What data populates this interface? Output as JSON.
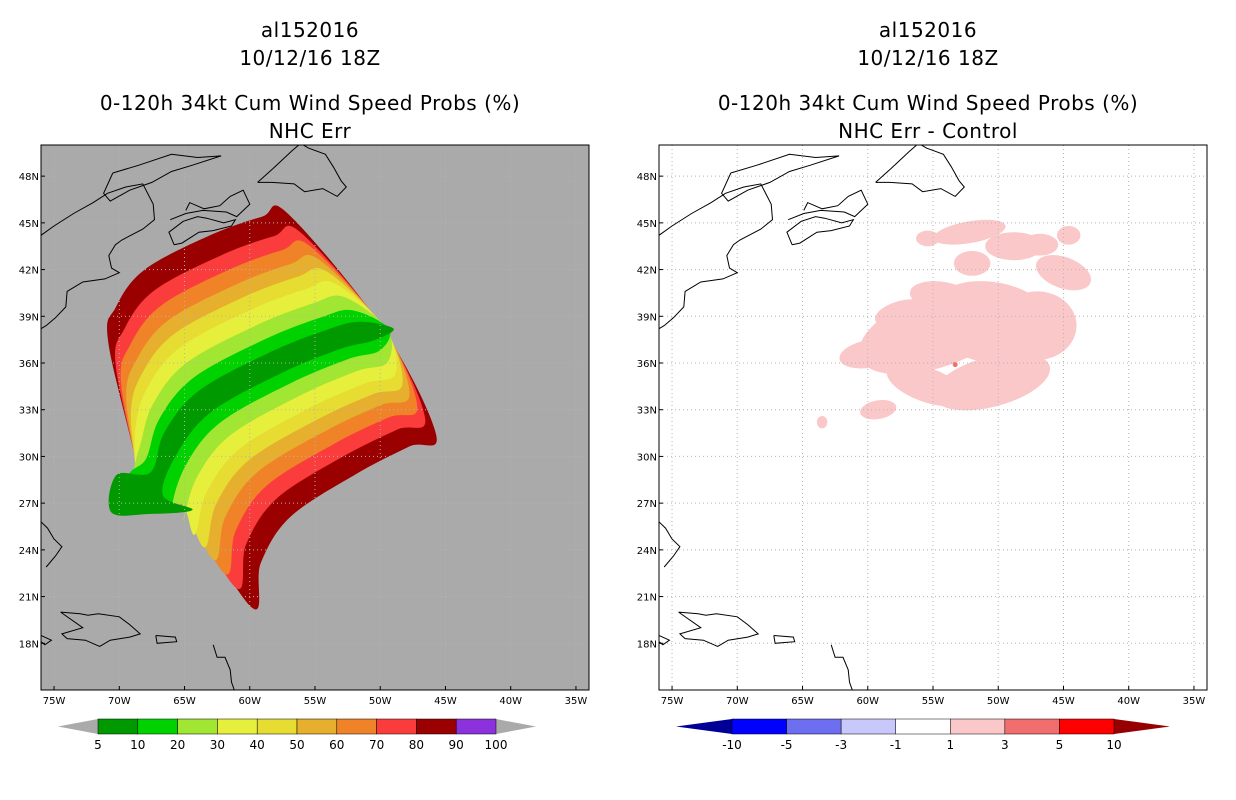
{
  "chart_data": [
    {
      "type": "heatmap",
      "storm_id": "al152016",
      "datetime": "10/12/16 18Z",
      "title": "0-120h 34kt Cum Wind Speed Probs (%)",
      "subtitle": "NHC Err",
      "lon_range": [
        -76,
        -34
      ],
      "lat_range": [
        15,
        50
      ],
      "x_ticks": [
        "75W",
        "70W",
        "65W",
        "60W",
        "55W",
        "50W",
        "45W",
        "40W",
        "35W"
      ],
      "y_ticks": [
        "48N",
        "45N",
        "42N",
        "39N",
        "36N",
        "33N",
        "30N",
        "27N",
        "24N",
        "21N",
        "18N"
      ],
      "colorbar": {
        "levels": [
          "5",
          "10",
          "20",
          "30",
          "40",
          "50",
          "60",
          "70",
          "80",
          "90",
          "100"
        ],
        "colors": [
          "#009a00",
          "#00d200",
          "#a0e632",
          "#e6f03c",
          "#e6dc32",
          "#e6af2d",
          "#f08228",
          "#fa3c3c",
          "#9b0000",
          "#8c32dc"
        ]
      },
      "background": "#aaaaaa",
      "field_contours": [
        {
          "level": 5,
          "color": "#009a00"
        },
        {
          "level": 10,
          "color": "#00d200"
        },
        {
          "level": 20,
          "color": "#a0e632"
        },
        {
          "level": 30,
          "color": "#e6f03c"
        },
        {
          "level": 40,
          "color": "#e6dc32"
        },
        {
          "level": 50,
          "color": "#e6af2d"
        },
        {
          "level": 60,
          "color": "#f08228"
        },
        {
          "level": 70,
          "color": "#fa3c3c"
        },
        {
          "level": 80,
          "color": "#9b0000"
        },
        {
          "level": 90,
          "color": "#8c32dc"
        }
      ]
    },
    {
      "type": "heatmap",
      "storm_id": "al152016",
      "datetime": "10/12/16 18Z",
      "title": "0-120h 34kt Cum Wind Speed Probs (%)",
      "subtitle": "NHC Err - Control",
      "lon_range": [
        -76,
        -34
      ],
      "lat_range": [
        15,
        50
      ],
      "x_ticks": [
        "75W",
        "70W",
        "65W",
        "60W",
        "55W",
        "50W",
        "45W",
        "40W",
        "35W"
      ],
      "y_ticks": [
        "48N",
        "45N",
        "42N",
        "39N",
        "36N",
        "33N",
        "30N",
        "27N",
        "24N",
        "21N",
        "18N"
      ],
      "colorbar": {
        "levels": [
          "-10",
          "-5",
          "-3",
          "-1",
          "1",
          "3",
          "5",
          "10"
        ],
        "colors": [
          "#000096",
          "#0000ff",
          "#6e6ef0",
          "#c8c8fa",
          "#ffffff",
          "#fac8c8",
          "#f06e6e",
          "#ff0000",
          "#960000"
        ]
      },
      "background": "#ffffff",
      "field_description_colors": {
        "positive_small": "#fac8c8",
        "positive_medium": "#f06e6e"
      }
    }
  ]
}
